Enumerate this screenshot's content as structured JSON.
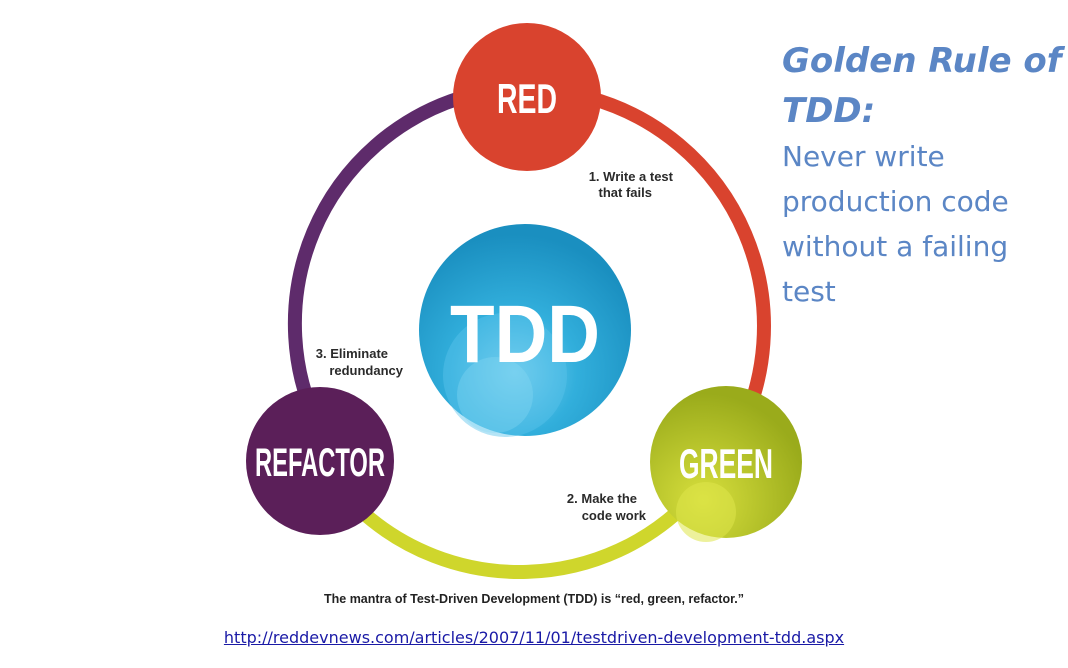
{
  "diagram": {
    "center_label": "TDD",
    "nodes": [
      {
        "id": "red",
        "label": "RED",
        "color": "#d9432e"
      },
      {
        "id": "green",
        "label": "GREEN",
        "color": "#a6b61e"
      },
      {
        "id": "refactor",
        "label": "REFACTOR",
        "color": "#5b1f59"
      }
    ],
    "steps": [
      {
        "line1": "1. Write a test",
        "line2": "that fails"
      },
      {
        "line1": "2. Make the",
        "line2": "code work"
      },
      {
        "line1": "3. Eliminate",
        "line2": "redundancy"
      }
    ],
    "arc_colors": {
      "red_to_green": "#d9432e",
      "green_to_refactor": "#cfd62c",
      "refactor_to_red": "#5e2b6b"
    },
    "center_color": "#1f9cc8"
  },
  "caption": "The mantra of Test-Driven Development (TDD) is “red, green, refactor.”",
  "golden_rule": {
    "title_line1": "Golden Rule of",
    "title_line2": "TDD:",
    "body_lines": [
      "Never write",
      "production code",
      "without a failing",
      "test"
    ],
    "color": "#5b86c5"
  },
  "source_url": "http://reddevnews.com/articles/2007/11/01/testdriven-development-tdd.aspx"
}
